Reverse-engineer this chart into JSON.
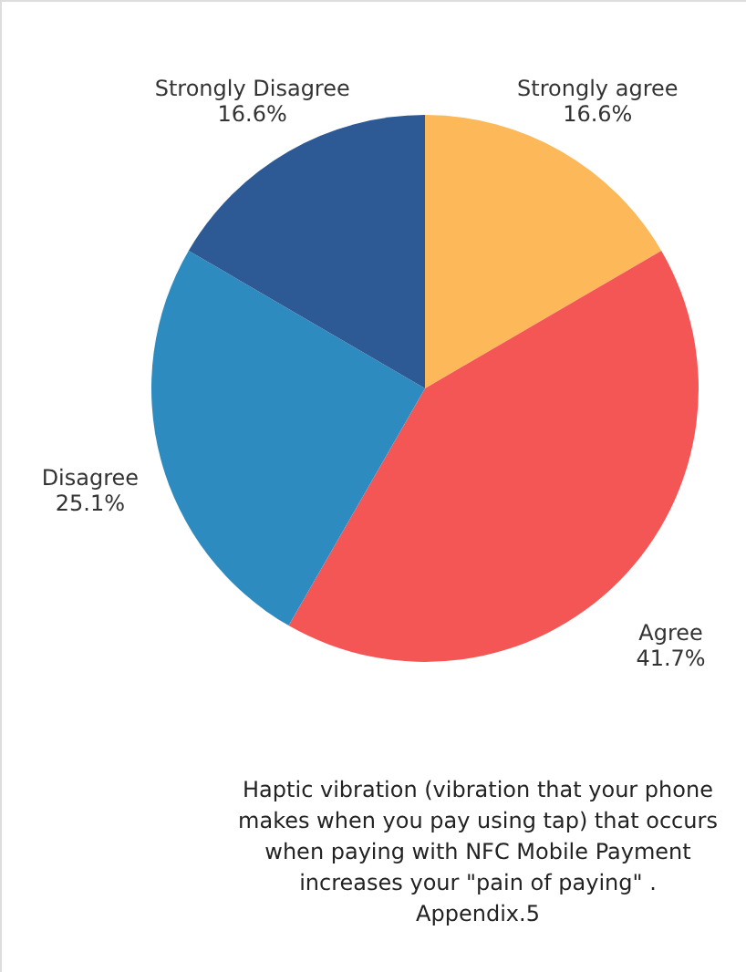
{
  "chart_data": {
    "type": "pie",
    "categories": [
      "Strongly agree",
      "Agree",
      "Disagree",
      "Strongly Disagree"
    ],
    "values": [
      16.6,
      41.7,
      25.1,
      16.6
    ],
    "colors": [
      "#fdb85a",
      "#f45656",
      "#2e8bc0",
      "#2d5a94"
    ],
    "value_labels": [
      "16.6%",
      "41.7%",
      "25.1%",
      "16.6%"
    ],
    "annotations": [
      "Haptic vibration (vibration that your phone\nmakes when you pay using tap) that occurs\nwhen paying with NFC Mobile Payment\nincreases your \"pain of paying\" .\nAppendix.5"
    ]
  }
}
